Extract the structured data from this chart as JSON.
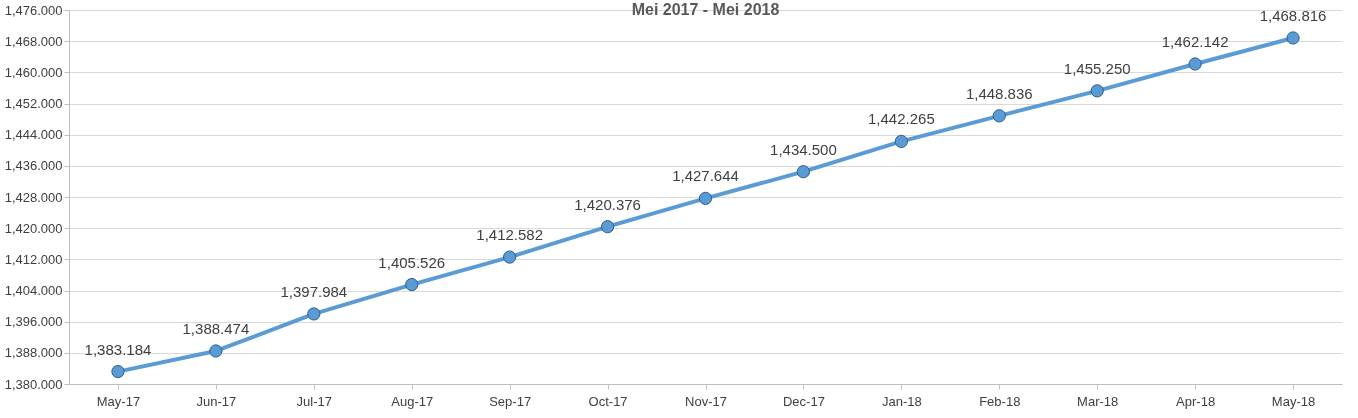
{
  "chart_data": {
    "type": "line",
    "title": "Mei 2017 - Mei 2018",
    "categories": [
      "May-17",
      "Jun-17",
      "Jul-17",
      "Aug-17",
      "Sep-17",
      "Oct-17",
      "Nov-17",
      "Dec-17",
      "Jan-18",
      "Feb-18",
      "Mar-18",
      "Apr-18",
      "May-18"
    ],
    "series": [
      {
        "color": "#5b9bd5",
        "values": [
          1383.184,
          1388.474,
          1397.984,
          1405.526,
          1412.582,
          1420.376,
          1427.644,
          1434.5,
          1442.265,
          1448.836,
          1455.25,
          1462.142,
          1468.816
        ],
        "value_labels": [
          "1,383.184",
          "1,388.474",
          "1,397.984",
          "1,405.526",
          "1,412.582",
          "1,420.376",
          "1,427.644",
          "1,434.500",
          "1,442.265",
          "1,448.836",
          "1,455.250",
          "1,462.142",
          "1,468.816"
        ]
      }
    ],
    "ylim": [
      1380,
      1476
    ],
    "yticks": [
      {
        "value": 1380,
        "label": "1,380.000"
      },
      {
        "value": 1388,
        "label": "1,388.000"
      },
      {
        "value": 1396,
        "label": "1,396.000"
      },
      {
        "value": 1404,
        "label": "1,404.000"
      },
      {
        "value": 1412,
        "label": "1,412.000"
      },
      {
        "value": 1420,
        "label": "1,420.000"
      },
      {
        "value": 1428,
        "label": "1,428.000"
      },
      {
        "value": 1436,
        "label": "1,436.000"
      },
      {
        "value": 1444,
        "label": "1,444.000"
      },
      {
        "value": 1452,
        "label": "1,452.000"
      },
      {
        "value": 1460,
        "label": "1,460.000"
      },
      {
        "value": 1468,
        "label": "1,468.000"
      },
      {
        "value": 1476,
        "label": "1,476.000"
      }
    ],
    "grid": "y",
    "marker": "circle",
    "line_style": "solid"
  }
}
